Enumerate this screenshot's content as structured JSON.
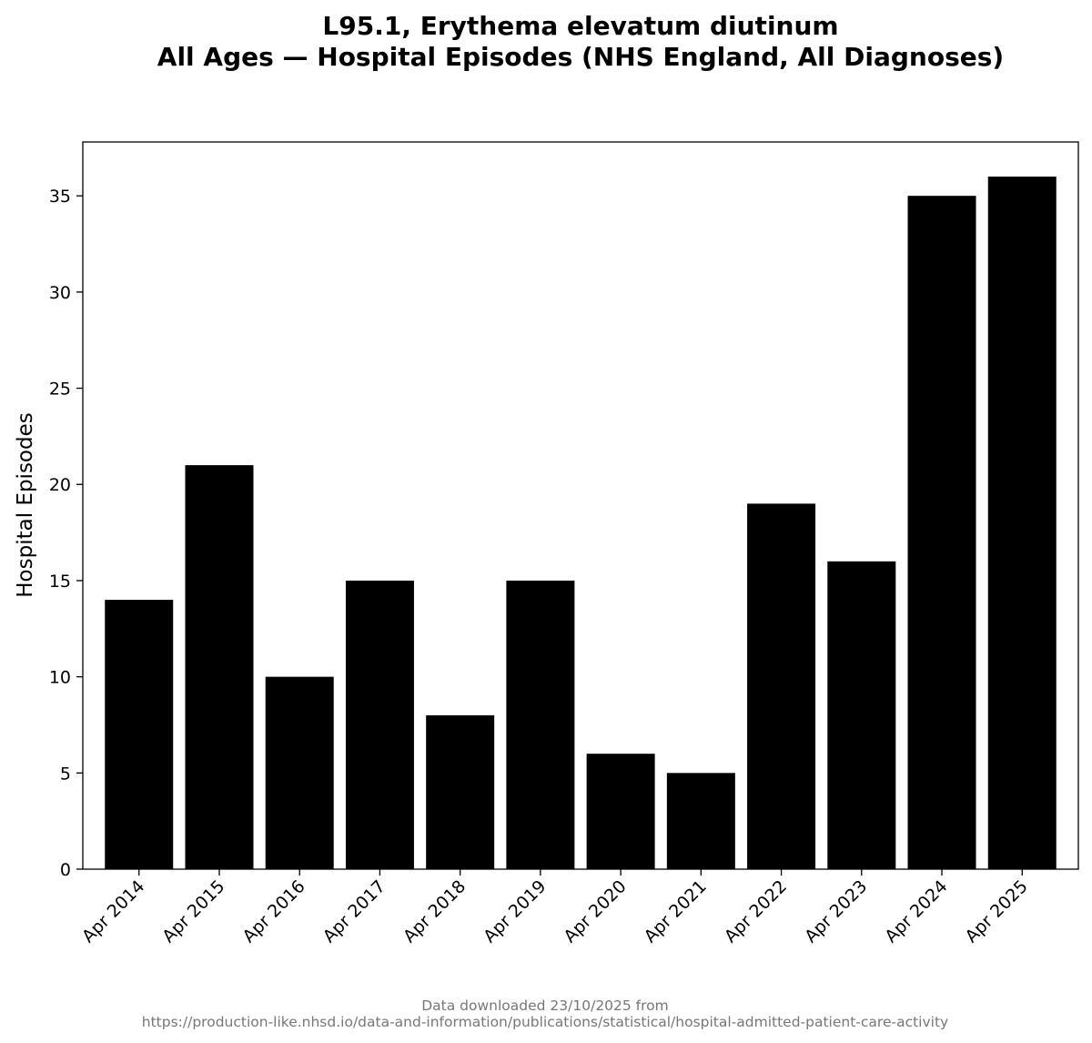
{
  "colors": {
    "bar": "#000000",
    "footer_text": "#777777"
  },
  "footer": {
    "line1": "Data downloaded 23/10/2025 from",
    "line2": "https://production-like.nhsd.io/data-and-information/publications/statistical/hospital-admitted-patient-care-activity"
  },
  "chart_data": {
    "type": "bar",
    "title": "L95.1, Erythema elevatum diutinum",
    "subtitle": "All Ages — Hospital Episodes (NHS England, All Diagnoses)",
    "xlabel": "",
    "ylabel": "Hospital Episodes",
    "categories": [
      "Apr 2014",
      "Apr 2015",
      "Apr 2016",
      "Apr 2017",
      "Apr 2018",
      "Apr 2019",
      "Apr 2020",
      "Apr 2021",
      "Apr 2022",
      "Apr 2023",
      "Apr 2024",
      "Apr 2025"
    ],
    "values": [
      14,
      21,
      10,
      15,
      8,
      15,
      6,
      5,
      19,
      16,
      35,
      36
    ],
    "ylim": [
      0,
      37.8
    ],
    "yticks": [
      0,
      5,
      10,
      15,
      20,
      25,
      30,
      35
    ],
    "grid": false,
    "legend": "none"
  }
}
